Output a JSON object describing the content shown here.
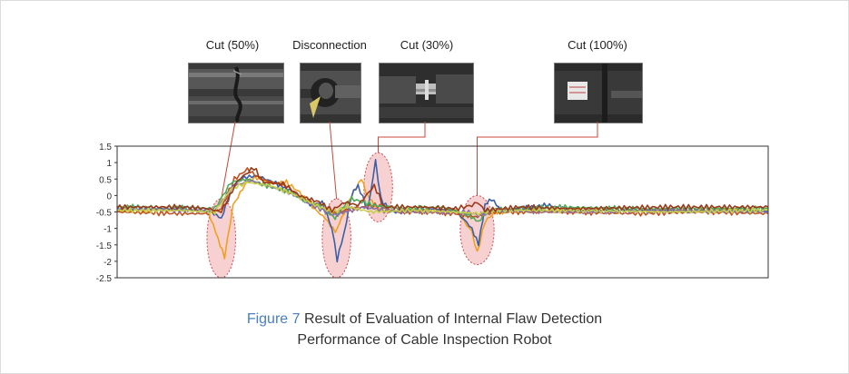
{
  "annotations": [
    {
      "label": "Cut (50%)",
      "x": 100
    },
    {
      "label": "Disconnection",
      "x": 355
    },
    {
      "label": "Cut (30%)",
      "x": 505
    },
    {
      "label": "Cut (100%)",
      "x": 820
    }
  ],
  "figure": {
    "number": "Figure 7",
    "title_line1": "Result of Evaluation of Internal Flaw Detection",
    "title_line2": "Performance of Cable Inspection Robot"
  },
  "colors": {
    "series": [
      "#f0a020",
      "#3a5fa8",
      "#c0521f",
      "#4caa58",
      "#8a6fa8",
      "#c6d24a",
      "#9b3a1a"
    ],
    "ellipse_fill": "#f4c2c2",
    "ellipse_stroke": "#d04848",
    "leader_line": "#c44a3a",
    "caption_accent": "#4a7fbf"
  },
  "chart_data": {
    "type": "line",
    "ylim": [
      -2.5,
      1.5
    ],
    "y_ticks": [
      "1.5",
      "1",
      "0.5",
      "0",
      "-0.5",
      "-1",
      "-1.5",
      "-2",
      "-2.5"
    ],
    "xlim": [
      0,
      1000
    ],
    "grid": false,
    "series": [
      {
        "points": [
          [
            0,
            -0.45
          ],
          [
            100,
            -0.45
          ],
          [
            140,
            -0.5
          ],
          [
            155,
            -1.3
          ],
          [
            165,
            -1.9
          ],
          [
            178,
            -0.3
          ],
          [
            200,
            0.45
          ],
          [
            215,
            0.55
          ],
          [
            240,
            0.35
          ],
          [
            260,
            0.4
          ],
          [
            280,
            0.1
          ],
          [
            300,
            -0.35
          ],
          [
            320,
            -0.7
          ],
          [
            335,
            -1.1
          ],
          [
            345,
            -0.7
          ],
          [
            360,
            0.0
          ],
          [
            375,
            0.5
          ],
          [
            385,
            0.0
          ],
          [
            395,
            -0.3
          ],
          [
            410,
            -0.5
          ],
          [
            450,
            -0.42
          ],
          [
            500,
            -0.45
          ],
          [
            520,
            -0.45
          ],
          [
            545,
            -1.1
          ],
          [
            553,
            -1.75
          ],
          [
            565,
            -0.8
          ],
          [
            580,
            -0.5
          ],
          [
            640,
            -0.45
          ],
          [
            700,
            -0.45
          ],
          [
            800,
            -0.45
          ],
          [
            900,
            -0.45
          ],
          [
            1000,
            -0.45
          ]
        ]
      },
      {
        "points": [
          [
            0,
            -0.4
          ],
          [
            100,
            -0.4
          ],
          [
            145,
            -0.5
          ],
          [
            160,
            -0.7
          ],
          [
            178,
            0.3
          ],
          [
            195,
            0.55
          ],
          [
            215,
            0.6
          ],
          [
            240,
            0.4
          ],
          [
            262,
            0.2
          ],
          [
            285,
            -0.1
          ],
          [
            300,
            -0.3
          ],
          [
            315,
            -0.2
          ],
          [
            330,
            -1.0
          ],
          [
            338,
            -1.95
          ],
          [
            348,
            -1.2
          ],
          [
            360,
            0.0
          ],
          [
            370,
            0.3
          ],
          [
            385,
            -0.45
          ],
          [
            397,
            1.05
          ],
          [
            405,
            -0.1
          ],
          [
            420,
            -0.5
          ],
          [
            480,
            -0.4
          ],
          [
            520,
            -0.45
          ],
          [
            545,
            -1.0
          ],
          [
            555,
            -1.5
          ],
          [
            565,
            -0.3
          ],
          [
            575,
            -0.1
          ],
          [
            590,
            -0.45
          ],
          [
            660,
            -0.3
          ],
          [
            700,
            -0.45
          ],
          [
            800,
            -0.45
          ],
          [
            900,
            -0.45
          ],
          [
            1000,
            -0.45
          ]
        ]
      },
      {
        "points": [
          [
            0,
            -0.5
          ],
          [
            100,
            -0.55
          ],
          [
            140,
            -0.55
          ],
          [
            160,
            -0.4
          ],
          [
            180,
            0.5
          ],
          [
            200,
            0.8
          ],
          [
            220,
            0.5
          ],
          [
            260,
            0.3
          ],
          [
            285,
            -0.1
          ],
          [
            310,
            -0.35
          ],
          [
            330,
            -0.55
          ],
          [
            360,
            -0.4
          ],
          [
            400,
            -0.3
          ],
          [
            430,
            -0.5
          ],
          [
            480,
            -0.5
          ],
          [
            520,
            -0.55
          ],
          [
            550,
            -0.65
          ],
          [
            580,
            -0.5
          ],
          [
            680,
            -0.5
          ],
          [
            800,
            -0.55
          ],
          [
            900,
            -0.5
          ],
          [
            1000,
            -0.55
          ]
        ]
      },
      {
        "points": [
          [
            0,
            -0.35
          ],
          [
            100,
            -0.35
          ],
          [
            150,
            -0.4
          ],
          [
            175,
            0.4
          ],
          [
            200,
            0.5
          ],
          [
            230,
            0.3
          ],
          [
            265,
            0.1
          ],
          [
            290,
            -0.2
          ],
          [
            310,
            -0.3
          ],
          [
            335,
            -0.7
          ],
          [
            345,
            -0.4
          ],
          [
            360,
            -0.1
          ],
          [
            395,
            -0.3
          ],
          [
            440,
            -0.4
          ],
          [
            500,
            -0.35
          ],
          [
            540,
            -0.6
          ],
          [
            555,
            -0.8
          ],
          [
            570,
            -0.45
          ],
          [
            680,
            -0.35
          ],
          [
            800,
            -0.4
          ],
          [
            900,
            -0.4
          ],
          [
            1000,
            -0.4
          ]
        ]
      },
      {
        "points": [
          [
            0,
            -0.4
          ],
          [
            100,
            -0.45
          ],
          [
            150,
            -0.45
          ],
          [
            180,
            0.3
          ],
          [
            205,
            0.45
          ],
          [
            240,
            0.25
          ],
          [
            275,
            0.0
          ],
          [
            300,
            -0.3
          ],
          [
            335,
            -0.6
          ],
          [
            350,
            -0.5
          ],
          [
            380,
            -0.35
          ],
          [
            410,
            -0.45
          ],
          [
            480,
            -0.5
          ],
          [
            540,
            -0.5
          ],
          [
            555,
            -0.6
          ],
          [
            575,
            -0.45
          ],
          [
            700,
            -0.5
          ],
          [
            850,
            -0.45
          ],
          [
            1000,
            -0.5
          ]
        ]
      },
      {
        "points": [
          [
            0,
            -0.45
          ],
          [
            100,
            -0.45
          ],
          [
            150,
            -0.5
          ],
          [
            175,
            0.2
          ],
          [
            200,
            0.4
          ],
          [
            235,
            0.3
          ],
          [
            270,
            0.05
          ],
          [
            300,
            -0.25
          ],
          [
            330,
            -0.5
          ],
          [
            355,
            -0.35
          ],
          [
            390,
            -0.5
          ],
          [
            450,
            -0.45
          ],
          [
            520,
            -0.5
          ],
          [
            555,
            -0.55
          ],
          [
            580,
            -0.45
          ],
          [
            700,
            -0.45
          ],
          [
            850,
            -0.5
          ],
          [
            1000,
            -0.45
          ]
        ]
      },
      {
        "points": [
          [
            0,
            -0.35
          ],
          [
            100,
            -0.35
          ],
          [
            140,
            -0.4
          ],
          [
            160,
            -0.5
          ],
          [
            185,
            0.45
          ],
          [
            210,
            0.85
          ],
          [
            225,
            0.4
          ],
          [
            255,
            0.35
          ],
          [
            280,
            0.0
          ],
          [
            310,
            -0.2
          ],
          [
            330,
            -0.45
          ],
          [
            350,
            -0.2
          ],
          [
            370,
            -0.3
          ],
          [
            395,
            0.3
          ],
          [
            410,
            -0.35
          ],
          [
            470,
            -0.35
          ],
          [
            520,
            -0.4
          ],
          [
            545,
            -0.3
          ],
          [
            553,
            -0.2
          ],
          [
            565,
            -0.45
          ],
          [
            620,
            -0.35
          ],
          [
            700,
            -0.4
          ],
          [
            850,
            -0.35
          ],
          [
            1000,
            -0.35
          ]
        ]
      }
    ],
    "highlight_regions": [
      {
        "label_ref": "Cut (50%)",
        "x_center": 160,
        "y_center": -1.3,
        "rx": 22,
        "ry": 1.2
      },
      {
        "label_ref": "Disconnection",
        "x_center": 337,
        "y_center": -1.3,
        "rx": 22,
        "ry": 1.2
      },
      {
        "label_ref": "Cut (30%)",
        "x_center": 401,
        "y_center": 0.25,
        "rx": 22,
        "ry": 1.05
      },
      {
        "label_ref": "Cut (100%)",
        "x_center": 553,
        "y_center": -1.05,
        "rx": 26,
        "ry": 1.05
      }
    ]
  }
}
